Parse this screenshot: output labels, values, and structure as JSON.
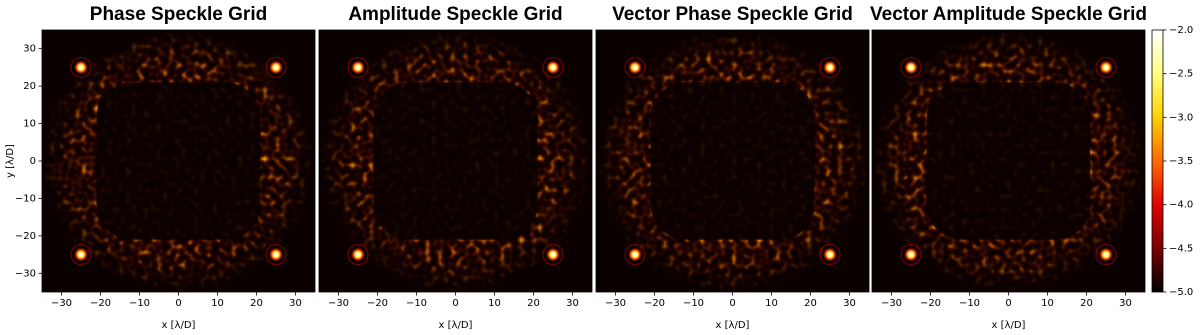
{
  "chart_data": [
    {
      "type": "image",
      "title": "Phase Speckle Grid",
      "xlabel": "x [λ/D]",
      "ylabel": "y [λ/D]",
      "xlim": [
        -35,
        35
      ],
      "ylim": [
        -35,
        35
      ],
      "xticks": [
        {
          "value": -30,
          "label": "−30"
        },
        {
          "value": -20,
          "label": "−20"
        },
        {
          "value": -10,
          "label": "−10"
        },
        0,
        10,
        20,
        30
      ],
      "yticks": [
        {
          "value": -30,
          "label": "−30"
        },
        {
          "value": -20,
          "label": "−20"
        },
        {
          "value": -10,
          "label": "−10"
        },
        0,
        10,
        20,
        30
      ],
      "x": [
        -25,
        25,
        -25,
        25
      ],
      "y": [
        25,
        25,
        -25,
        -25
      ]
    },
    {
      "type": "image",
      "title": "Amplitude Speckle Grid",
      "xlabel": "x [λ/D]",
      "xlim": [
        -35,
        35
      ],
      "ylim": [
        -35,
        35
      ],
      "xticks": [
        {
          "value": -30,
          "label": "−30"
        },
        {
          "value": -20,
          "label": "−20"
        },
        {
          "value": -10,
          "label": "−10"
        },
        0,
        10,
        20,
        30
      ],
      "x": [
        -25,
        25,
        -25,
        25
      ],
      "y": [
        25,
        25,
        -25,
        -25
      ]
    },
    {
      "type": "image",
      "title": "Vector Phase Speckle Grid",
      "xlabel": "x [λ/D]",
      "xlim": [
        -35,
        35
      ],
      "ylim": [
        -35,
        35
      ],
      "xticks": [
        {
          "value": -30,
          "label": "−30"
        },
        {
          "value": -20,
          "label": "−20"
        },
        {
          "value": -10,
          "label": "−10"
        },
        0,
        10,
        20,
        30
      ],
      "x": [
        -25,
        25,
        -25,
        25
      ],
      "y": [
        25,
        25,
        -25,
        -25
      ]
    },
    {
      "type": "image",
      "title": "Vector Amplitude Speckle Grid",
      "xlabel": "x [λ/D]",
      "xlim": [
        -35,
        35
      ],
      "ylim": [
        -35,
        35
      ],
      "xticks": [
        {
          "value": -30,
          "label": "−30"
        },
        {
          "value": -20,
          "label": "−20"
        },
        {
          "value": -10,
          "label": "−10"
        },
        0,
        10,
        20,
        30
      ],
      "x": [
        -25,
        25,
        -25,
        25
      ],
      "y": [
        25,
        25,
        -25,
        -25
      ],
      "colorbar": {
        "lim": [
          -5,
          -2
        ],
        "ticks": [
          {
            "value": -2,
            "label": "−2.0"
          },
          {
            "value": -2.5,
            "label": "−2.5"
          },
          {
            "value": -3,
            "label": "−3.0"
          },
          {
            "value": -3.5,
            "label": "−3.5"
          },
          {
            "value": -4,
            "label": "−4.0"
          },
          {
            "value": -4.5,
            "label": "−4.5"
          },
          {
            "value": -5,
            "label": "−5.0"
          }
        ],
        "colormap": [
          "#000000",
          "#7a0000",
          "#e00000",
          "#ff6a00",
          "#ffd000",
          "#ffff80",
          "#ffffff"
        ]
      }
    }
  ]
}
